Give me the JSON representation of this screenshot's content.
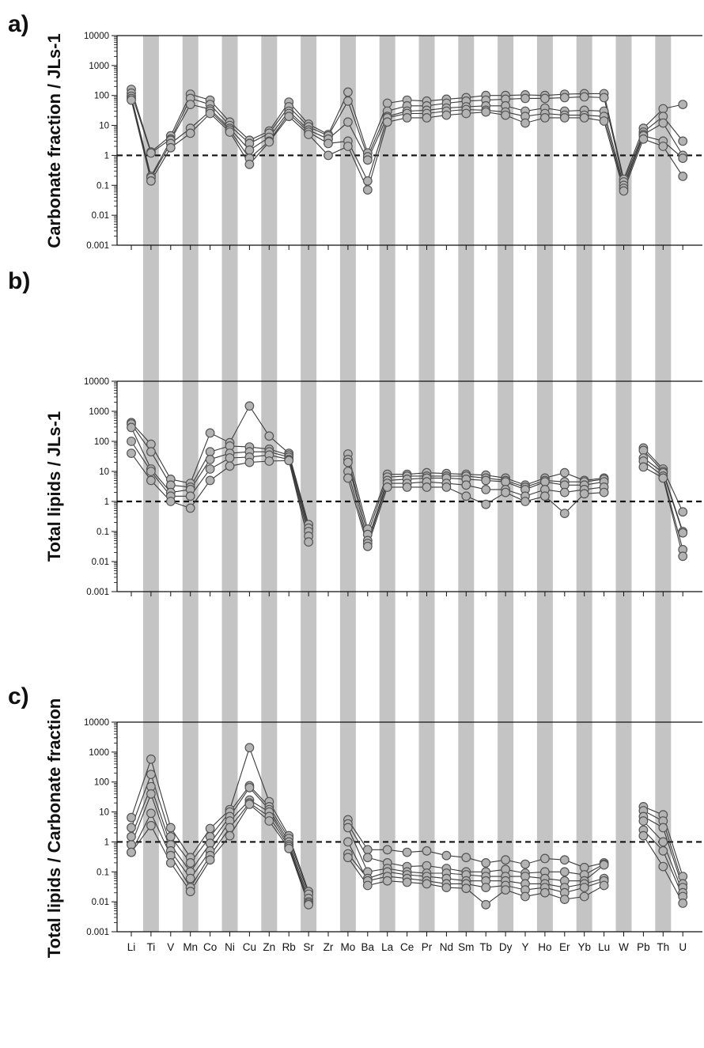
{
  "colors": {
    "band": "#c4c4c4",
    "line": "#3a3a3a",
    "marker_fill": "#b3b3b3",
    "marker_stroke": "#555555",
    "axis": "#111111"
  },
  "elements": [
    "Li",
    "Ti",
    "V",
    "Mn",
    "Co",
    "Ni",
    "Cu",
    "Zn",
    "Rb",
    "Sr",
    "Zr",
    "Mo",
    "Ba",
    "La",
    "Ce",
    "Pr",
    "Nd",
    "Sm",
    "Tb",
    "Dy",
    "Y",
    "Ho",
    "Er",
    "Yb",
    "Lu",
    "W",
    "Pb",
    "Th",
    "U"
  ],
  "chart_data": [
    {
      "panel": "a)",
      "type": "line",
      "ylabel": "Carbonate fraction / JLs-1",
      "yscale": "log",
      "ylim": [
        0.001,
        10000
      ],
      "yticks": [
        "0.001",
        "0.01",
        "0.1",
        "1",
        "10",
        "100",
        "1000",
        "10000"
      ],
      "reference_line": 1,
      "shaded_bands": [
        "Ti",
        "Mn",
        "Ni",
        "Zn",
        "Sr",
        "Mo",
        "La",
        "Pr",
        "Sm",
        "Dy",
        "Ho",
        "Yb",
        "W",
        "Th"
      ],
      "series": [
        {
          "values": [
            160,
            1.3,
            4.5,
            110,
            70,
            13,
            3.2,
            6.5,
            60,
            11,
            5,
            130,
            1.2,
            55,
            70,
            65,
            75,
            85,
            100,
            100,
            105,
            100,
            110,
            115,
            115,
            0.16,
            8,
            36,
            50
          ]
        },
        {
          "values": [
            120,
            1.2,
            3.5,
            80,
            50,
            10,
            2.5,
            5.5,
            42,
            9,
            4.5,
            65,
            0.9,
            30,
            45,
            45,
            55,
            65,
            70,
            75,
            80,
            80,
            85,
            90,
            85,
            0.13,
            6,
            20,
            3
          ]
        },
        {
          "values": [
            95,
            0.2,
            3.2,
            50,
            35,
            8,
            1.5,
            4,
            30,
            7,
            3.5,
            13,
            0.7,
            20,
            30,
            32,
            38,
            42,
            45,
            45,
            30,
            38,
            30,
            32,
            30,
            0.1,
            5,
            12,
            1
          ]
        },
        {
          "values": [
            80,
            0.18,
            2.5,
            8,
            30,
            7,
            0.8,
            3,
            25,
            6,
            2.5,
            3,
            0.14,
            18,
            25,
            25,
            30,
            34,
            32,
            28,
            20,
            25,
            22,
            22,
            20,
            0.08,
            4.5,
            3,
            0.8
          ]
        },
        {
          "values": [
            70,
            0.14,
            1.8,
            5.5,
            25,
            6,
            0.5,
            2.8,
            20,
            5,
            1,
            2,
            0.07,
            13,
            18,
            18,
            22,
            25,
            28,
            22,
            12,
            18,
            18,
            18,
            14,
            0.065,
            3.5,
            2,
            0.2
          ]
        }
      ]
    },
    {
      "panel": "b)",
      "type": "line",
      "ylabel": "Total lipids / JLs-1",
      "yscale": "log",
      "ylim": [
        0.001,
        10000
      ],
      "yticks": [
        "0.001",
        "0.01",
        "0.1",
        "1",
        "10",
        "100",
        "1000",
        "10000"
      ],
      "reference_line": 1,
      "shaded_bands": [
        "Ti",
        "Mn",
        "Ni",
        "Zn",
        "Sr",
        "Mo",
        "La",
        "Pr",
        "Sm",
        "Dy",
        "Ho",
        "Yb",
        "W",
        "Th"
      ],
      "series": [
        {
          "values": [
            420,
            80,
            5.5,
            4,
            190,
            90,
            1500,
            150,
            40,
            0.17,
            null,
            38,
            0.12,
            8,
            8,
            9,
            8.5,
            8,
            7.5,
            6,
            3.5,
            6,
            9,
            5,
            6,
            null,
            60,
            12,
            0.45
          ]
        },
        {
          "values": [
            380,
            45,
            3.5,
            3,
            45,
            70,
            65,
            55,
            35,
            0.13,
            null,
            25,
            0.08,
            6.5,
            7,
            7,
            7,
            7,
            6,
            5,
            3,
            5,
            4.5,
            4.5,
            5.5,
            null,
            50,
            10,
            0.1
          ]
        },
        {
          "values": [
            290,
            12,
            2,
            2.5,
            25,
            40,
            45,
            45,
            30,
            0.1,
            null,
            20,
            0.05,
            5,
            5.5,
            6,
            6,
            5.5,
            5,
            4.5,
            2.5,
            4.5,
            3.5,
            3.5,
            4.5,
            null,
            28,
            9,
            0.09
          ]
        },
        {
          "values": [
            100,
            10,
            1.5,
            1.5,
            12,
            28,
            30,
            35,
            25,
            0.07,
            null,
            10,
            0.04,
            4,
            4,
            4.5,
            4,
            3.5,
            2.5,
            2.5,
            1.5,
            2.5,
            2,
            2.5,
            3,
            null,
            22,
            7,
            0.025
          ]
        },
        {
          "values": [
            40,
            5,
            1,
            0.6,
            5,
            15,
            20,
            22,
            23,
            0.045,
            null,
            6,
            0.032,
            3,
            3,
            3,
            3,
            1.5,
            0.8,
            2,
            1,
            1.5,
            0.4,
            1.8,
            2,
            null,
            14,
            6,
            0.015
          ]
        }
      ]
    },
    {
      "panel": "c)",
      "type": "line",
      "ylabel": "Total lipids / Carbonate fraction",
      "yscale": "log",
      "ylim": [
        0.001,
        10000
      ],
      "yticks": [
        "0.001",
        "0.01",
        "0.1",
        "1",
        "10",
        "100",
        "1000",
        "10000"
      ],
      "reference_line": 1,
      "shaded_bands": [
        "Ti",
        "Mn",
        "Ni",
        "Zn",
        "Sr",
        "Mo",
        "La",
        "Pr",
        "Sm",
        "Dy",
        "Ho",
        "Yb",
        "W",
        "Th"
      ],
      "series": [
        {
          "values": [
            6.5,
            580,
            3,
            0.3,
            2.8,
            12,
            1400,
            22,
            1.6,
            0.022,
            null,
            5.5,
            0.55,
            0.55,
            0.45,
            0.5,
            0.35,
            0.3,
            0.2,
            0.25,
            0.18,
            0.28,
            0.25,
            0.14,
            0.2,
            null,
            15,
            8,
            0.07
          ]
        },
        {
          "values": [
            3,
            180,
            1.5,
            0.2,
            1.5,
            10,
            75,
            15,
            1.3,
            0.018,
            null,
            4,
            0.3,
            0.2,
            0.15,
            0.16,
            0.13,
            0.1,
            0.1,
            0.12,
            0.09,
            0.1,
            0.1,
            0.08,
            0.18,
            null,
            11,
            5,
            0.04
          ]
        },
        {
          "values": [
            1.5,
            70,
            0.8,
            0.1,
            0.9,
            7,
            65,
            12,
            1,
            0.013,
            null,
            3,
            0.1,
            0.13,
            0.1,
            0.09,
            0.09,
            0.08,
            0.07,
            0.07,
            0.07,
            0.06,
            0.05,
            0.05,
            0.17,
            null,
            7,
            3,
            0.03
          ]
        },
        {
          "values": [
            0.8,
            40,
            0.5,
            0.06,
            0.5,
            5,
            25,
            10,
            0.8,
            0.01,
            null,
            0.4,
            0.06,
            0.1,
            0.08,
            0.07,
            0.06,
            0.05,
            0.05,
            0.05,
            0.04,
            0.04,
            0.03,
            0.04,
            0.06,
            null,
            5,
            1,
            0.02
          ]
        },
        {
          "values": [
            0.45,
            9,
            0.35,
            0.03,
            0.35,
            3,
            20,
            7,
            0.7,
            0.009,
            null,
            1,
            0.05,
            0.07,
            0.06,
            0.05,
            0.04,
            0.04,
            0.03,
            0.035,
            0.025,
            0.03,
            0.02,
            0.03,
            0.05,
            null,
            2.5,
            0.5,
            0.015
          ]
        },
        {
          "values": [
            0.45,
            3.5,
            0.2,
            0.022,
            0.25,
            1.6,
            18,
            5,
            0.6,
            0.008,
            null,
            0.3,
            0.035,
            0.05,
            0.045,
            0.04,
            0.03,
            0.028,
            0.008,
            0.025,
            0.015,
            0.02,
            0.012,
            0.015,
            0.035,
            null,
            1.6,
            0.15,
            0.009
          ]
        }
      ]
    }
  ]
}
